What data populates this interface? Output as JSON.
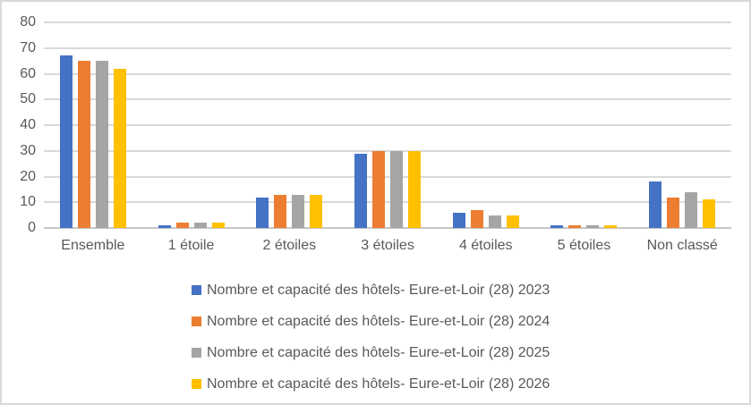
{
  "chart_data": {
    "type": "bar",
    "title": "",
    "xlabel": "",
    "ylabel": "",
    "categories": [
      "Ensemble",
      "1 étoile",
      "2 étoiles",
      "3 étoiles",
      "4 étoiles",
      "5 étoiles",
      "Non classé"
    ],
    "series": [
      {
        "name": "Nombre et capacité des hôtels- Eure-et-Loir (28) 2023",
        "color": "#4472C4",
        "values": [
          67,
          1,
          12,
          29,
          6,
          1,
          18
        ]
      },
      {
        "name": "Nombre et capacité des hôtels- Eure-et-Loir (28) 2024",
        "color": "#ED7D31",
        "values": [
          65,
          2,
          13,
          30,
          7,
          1,
          12
        ]
      },
      {
        "name": "Nombre et capacité des hôtels- Eure-et-Loir (28) 2025",
        "color": "#A5A5A5",
        "values": [
          65,
          2,
          13,
          30,
          5,
          1,
          14
        ]
      },
      {
        "name": "Nombre et capacité des hôtels- Eure-et-Loir (28) 2026",
        "color": "#FFC000",
        "values": [
          62,
          2,
          13,
          30,
          5,
          1,
          11
        ]
      }
    ],
    "ylim": [
      0,
      80
    ],
    "yticks": [
      0,
      10,
      20,
      30,
      40,
      50,
      60,
      70,
      80
    ],
    "grid": true,
    "legend_position": "bottom-left",
    "colors": {
      "gridline": "#D9D9D9",
      "axis_line": "#C6C6C6",
      "text": "#595959",
      "frame_border": "#D9D9D9",
      "background": "#FFFFFF"
    }
  }
}
